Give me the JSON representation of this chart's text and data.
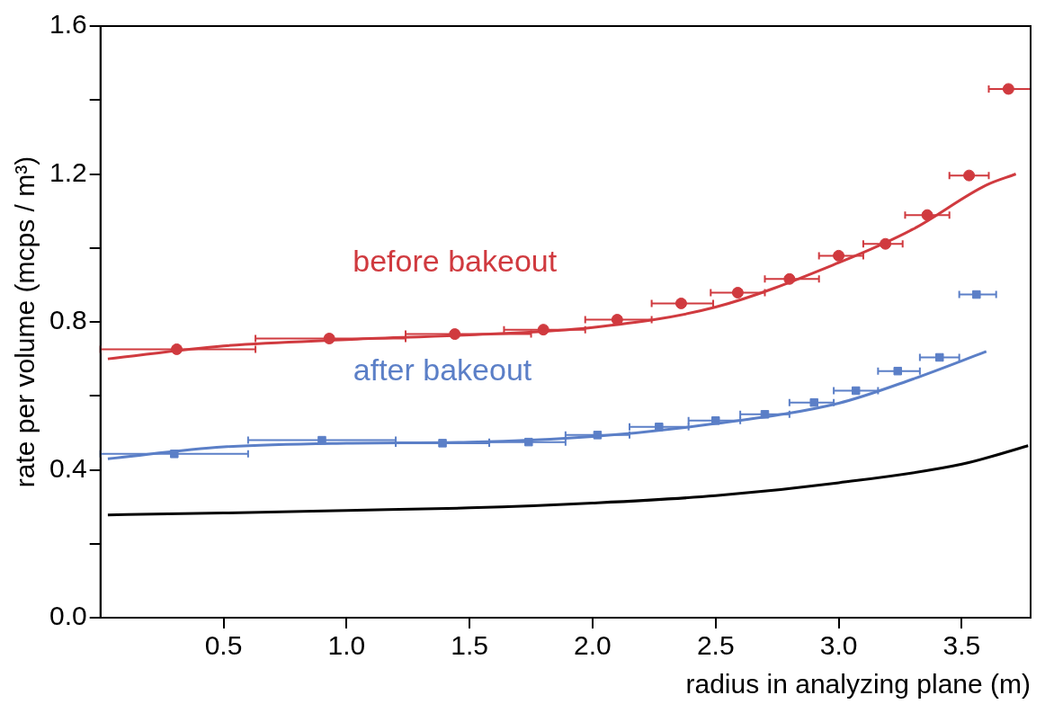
{
  "chart_data": {
    "type": "scatter",
    "xlabel": "radius in analyzing plane (m)",
    "ylabel": "rate per volume (mcps / m³)",
    "xlim": [
      0,
      3.78
    ],
    "ylim": [
      0,
      1.6
    ],
    "xticks": [
      0.5,
      {
        "value": 1,
        "label": "1.0"
      },
      1.5,
      {
        "value": 2,
        "label": "2.0"
      },
      2.5,
      {
        "value": 3,
        "label": "3.0"
      },
      3.5
    ],
    "yticks": [
      {
        "value": 0,
        "label": "0.0"
      },
      {
        "value": 0.2,
        "label": null
      },
      0.4,
      {
        "value": 0.6,
        "label": null
      },
      0.8,
      {
        "value": 1.0,
        "label": null
      },
      1.2,
      {
        "value": 1.4,
        "label": null
      },
      1.6
    ],
    "grid": false,
    "legend": false,
    "series": [
      {
        "name": "before bakeout",
        "marker": "circle",
        "color": "#d03a3f",
        "x": [
          0.31,
          0.93,
          1.44,
          1.8,
          2.1,
          2.36,
          2.59,
          2.8,
          3.0,
          3.19,
          3.36,
          3.53,
          3.69
        ],
        "values": [
          0.726,
          0.755,
          0.767,
          0.779,
          0.806,
          0.85,
          0.879,
          0.916,
          0.979,
          1.011,
          1.089,
          1.196,
          1.43
        ],
        "xerrors": [
          [
            0,
            0.63
          ],
          [
            0.63,
            1.24
          ],
          [
            1.24,
            1.75
          ],
          [
            1.64,
            1.97
          ],
          [
            1.97,
            2.24
          ],
          [
            2.24,
            2.49
          ],
          [
            2.48,
            2.7
          ],
          [
            2.7,
            2.92
          ],
          [
            2.92,
            3.1
          ],
          [
            3.1,
            3.26
          ],
          [
            3.27,
            3.45
          ],
          [
            3.45,
            3.61
          ],
          [
            3.61,
            3.78
          ]
        ]
      },
      {
        "type": "line",
        "marker": "none",
        "color": "#d03a3f",
        "x": [
          0.03,
          0.5,
          1.0,
          1.5,
          2.0,
          2.5,
          3.0,
          3.3,
          3.6,
          3.72
        ],
        "values": [
          0.7,
          0.735,
          0.752,
          0.765,
          0.785,
          0.84,
          0.96,
          1.05,
          1.17,
          1.2
        ]
      },
      {
        "name": "after bakeout",
        "marker": "square",
        "color": "#5b7fc7",
        "x": [
          0.3,
          0.9,
          1.39,
          1.74,
          2.02,
          2.27,
          2.5,
          2.7,
          2.9,
          3.07,
          3.24,
          3.41,
          3.56
        ],
        "values": [
          0.443,
          0.48,
          0.472,
          0.475,
          0.494,
          0.516,
          0.533,
          0.55,
          0.582,
          0.614,
          0.667,
          0.704,
          0.874
        ],
        "xerrors": [
          [
            0,
            0.6
          ],
          [
            0.6,
            1.2
          ],
          [
            1.2,
            1.58
          ],
          [
            1.58,
            1.89
          ],
          [
            1.89,
            2.15
          ],
          [
            2.15,
            2.39
          ],
          [
            2.39,
            2.6
          ],
          [
            2.6,
            2.8
          ],
          [
            2.8,
            2.98
          ],
          [
            2.98,
            3.16
          ],
          [
            3.16,
            3.33
          ],
          [
            3.33,
            3.49
          ],
          [
            3.49,
            3.64
          ]
        ]
      },
      {
        "type": "line",
        "marker": "none",
        "color": "#5b7fc7",
        "x": [
          0.03,
          0.5,
          1.0,
          1.5,
          2.0,
          2.5,
          3.0,
          3.3,
          3.6
        ],
        "values": [
          0.43,
          0.462,
          0.472,
          0.475,
          0.49,
          0.525,
          0.58,
          0.645,
          0.72
        ]
      },
      {
        "type": "line",
        "marker": "none",
        "color": "#000000",
        "x": [
          0.03,
          0.5,
          1.0,
          1.5,
          2.0,
          2.5,
          3.0,
          3.5,
          3.77
        ],
        "values": [
          0.278,
          0.283,
          0.29,
          0.297,
          0.31,
          0.33,
          0.365,
          0.415,
          0.465
        ]
      }
    ]
  }
}
